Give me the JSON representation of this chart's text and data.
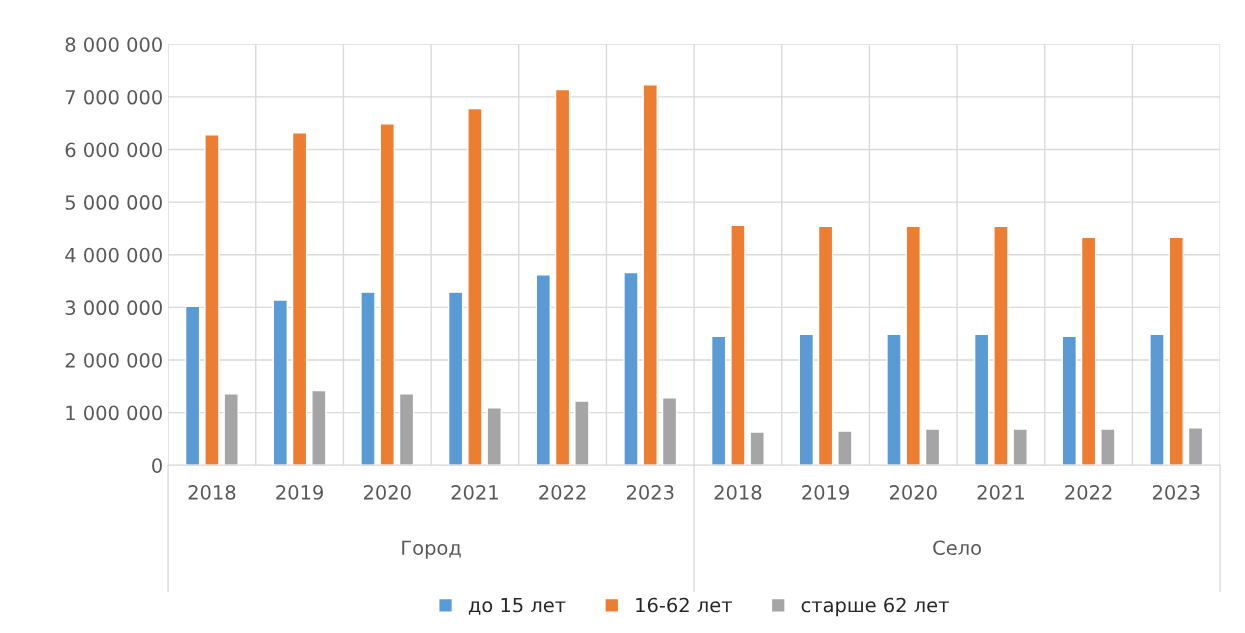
{
  "chart_data": {
    "type": "bar",
    "categories": [
      "2018",
      "2019",
      "2020",
      "2021",
      "2022",
      "2023",
      "2018",
      "2019",
      "2020",
      "2021",
      "2022",
      "2023"
    ],
    "series": [
      {
        "name": "до 15 лет",
        "color": "#5b9bd5",
        "values": [
          3020000,
          3140000,
          3290000,
          3290000,
          3620000,
          3660000,
          2450000,
          2490000,
          2490000,
          2490000,
          2450000,
          2490000
        ]
      },
      {
        "name": "16-62 лет",
        "color": "#ed7d31",
        "values": [
          6280000,
          6320000,
          6490000,
          6780000,
          7140000,
          7230000,
          4560000,
          4540000,
          4540000,
          4540000,
          4330000,
          4330000
        ]
      },
      {
        "name": "старше 62 лет",
        "color": "#a5a5a5",
        "values": [
          1360000,
          1420000,
          1360000,
          1090000,
          1220000,
          1280000,
          630000,
          650000,
          690000,
          690000,
          690000,
          710000
        ]
      }
    ],
    "ylim": [
      0,
      8000000
    ],
    "yticks": [
      0,
      {
        "value": 1000000,
        "label": "1 000 000"
      },
      {
        "value": 2000000,
        "label": "2 000 000"
      },
      {
        "value": 3000000,
        "label": "3 000 000"
      },
      {
        "value": 4000000,
        "label": "4 000 000"
      },
      {
        "value": 5000000,
        "label": "5 000 000"
      },
      {
        "value": 6000000,
        "label": "6 000 000"
      },
      {
        "value": 7000000,
        "label": "7 000 000"
      },
      {
        "value": 8000000,
        "label": "8 000 000"
      }
    ],
    "annotations": [
      "Город",
      "Село"
    ],
    "grid": true,
    "legend": "bottom"
  }
}
